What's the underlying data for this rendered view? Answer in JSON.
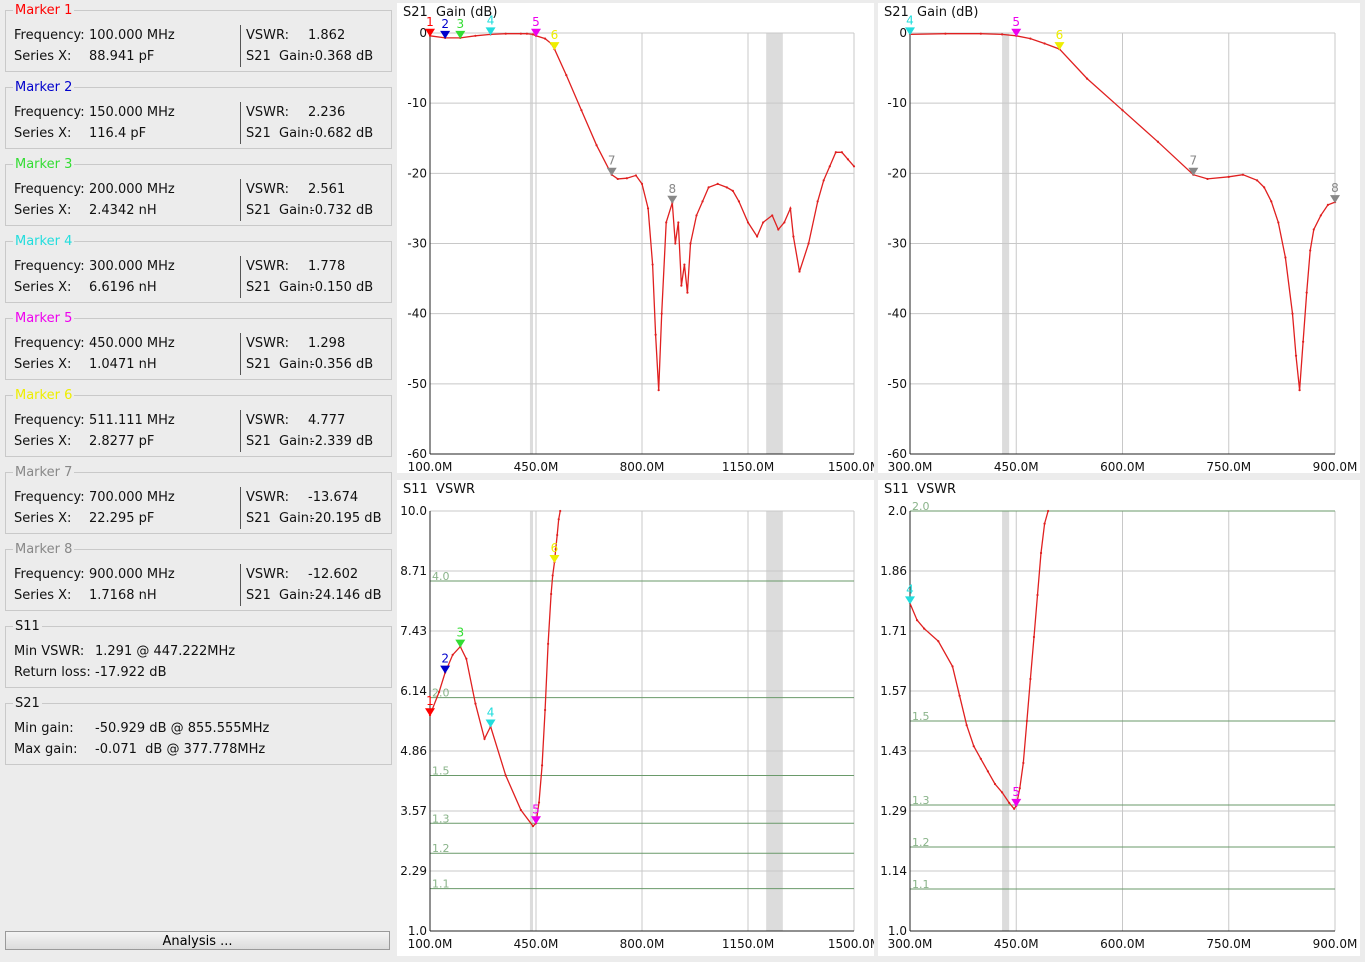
{
  "markers": [
    {
      "label": "Marker 1",
      "color": "#ff0000",
      "freq": "100.000 MHz",
      "series_label": "Series X:",
      "series_value": "88.941 pF",
      "vswr": "1.862",
      "gain": "-0.368 dB"
    },
    {
      "label": "Marker 2",
      "color": "#0000cc",
      "freq": "150.000 MHz",
      "series_label": "Series X:",
      "series_value": "116.4 pF",
      "vswr": "2.236",
      "gain": "-0.682 dB"
    },
    {
      "label": "Marker 3",
      "color": "#33dd33",
      "freq": "200.000 MHz",
      "series_label": "Series X:",
      "series_value": "2.4342 nH",
      "vswr": "2.561",
      "gain": "-0.732 dB"
    },
    {
      "label": "Marker 4",
      "color": "#22dddd",
      "freq": "300.000 MHz",
      "series_label": "Series X:",
      "series_value": "6.6196 nH",
      "vswr": "1.778",
      "gain": "-0.150 dB"
    },
    {
      "label": "Marker 5",
      "color": "#ee00ee",
      "freq": "450.000 MHz",
      "series_label": "Series X:",
      "series_value": "1.0471 nH",
      "vswr": "1.298",
      "gain": "-0.356 dB"
    },
    {
      "label": "Marker 6",
      "color": "#eeee00",
      "freq": "511.111 MHz",
      "series_label": "Series X:",
      "series_value": "2.8277 pF",
      "vswr": "4.777",
      "gain": "-2.339 dB"
    },
    {
      "label": "Marker 7",
      "color": "#888888",
      "freq": "700.000 MHz",
      "series_label": "Series X:",
      "series_value": "22.295 pF",
      "vswr": "-13.674",
      "gain": "-20.195 dB"
    },
    {
      "label": "Marker 8",
      "color": "#888888",
      "freq": "900.000 MHz",
      "series_label": "Series X:",
      "series_value": "1.7168 nH",
      "vswr": "-12.602",
      "gain": "-24.146 dB"
    }
  ],
  "field_labels": {
    "frequency": "Frequency:",
    "vswr": "VSWR:",
    "gain": "S21  Gain:"
  },
  "s11_summary": {
    "title": "S11",
    "line1_label": "Min VSWR:",
    "line1_value": "1.291 @ 447.222MHz",
    "line2_label": "Return loss:",
    "line2_value": "-17.922 dB"
  },
  "s21_summary": {
    "title": "S21",
    "line1_label": "Min gain:",
    "line1_value": "-50.929 dB @ 855.555MHz",
    "line2_label": "Max gain:",
    "line2_value": "-0.071  dB @ 377.778MHz"
  },
  "analysis_button": "Analysis ...",
  "charts": [
    {
      "id": "s21-wide",
      "title": "S21  Gain (dB)",
      "type": "line",
      "x_ticks": [
        "100.0M",
        "450.0M",
        "800.0M",
        "1150.0M",
        "1500.0M"
      ],
      "xlim": [
        100,
        1500
      ],
      "y_ticks": [
        "0",
        "-10",
        "-20",
        "-30",
        "-40",
        "-50",
        "-60"
      ],
      "ylim": [
        -60,
        0
      ],
      "y_scale": "linear",
      "bands": [
        [
          430,
          440
        ],
        [
          1210,
          1265
        ]
      ],
      "series": [
        {
          "color": "#e02020",
          "x": [
            100,
            150,
            200,
            250,
            300,
            350,
            400,
            420,
            440,
            450,
            480,
            500,
            511,
            550,
            600,
            650,
            700,
            720,
            750,
            780,
            800,
            820,
            835,
            845,
            855,
            865,
            880,
            900,
            910,
            920,
            930,
            940,
            950,
            960,
            980,
            1000,
            1020,
            1050,
            1080,
            1100,
            1120,
            1150,
            1180,
            1200,
            1230,
            1250,
            1270,
            1290,
            1300,
            1320,
            1350,
            1380,
            1400,
            1420,
            1440,
            1460,
            1480,
            1500
          ],
          "y": [
            -0.4,
            -0.7,
            -0.7,
            -0.4,
            -0.2,
            -0.1,
            -0.1,
            -0.1,
            -0.2,
            -0.4,
            -0.8,
            -1.5,
            -2.3,
            -6,
            -11,
            -16,
            -20.2,
            -20.8,
            -20.7,
            -20.3,
            -21.5,
            -25,
            -33,
            -43,
            -50.9,
            -40,
            -27,
            -24.2,
            -30,
            -27,
            -36,
            -33,
            -37,
            -30,
            -26,
            -24,
            -22,
            -21.5,
            -22,
            -22.5,
            -24,
            -27,
            -29,
            -27,
            -26,
            -28,
            -27,
            -25,
            -29,
            -34,
            -30,
            -24,
            -21,
            -19,
            -17,
            -17,
            -18,
            -19
          ]
        }
      ],
      "markers": [
        {
          "n": "1",
          "x": 100,
          "y": -0.4,
          "color": "#ff0000"
        },
        {
          "n": "2",
          "x": 150,
          "y": -0.7,
          "color": "#0000cc"
        },
        {
          "n": "3",
          "x": 200,
          "y": -0.7,
          "color": "#33dd33"
        },
        {
          "n": "4",
          "x": 300,
          "y": -0.2,
          "color": "#22dddd"
        },
        {
          "n": "5",
          "x": 450,
          "y": -0.4,
          "color": "#ee00ee"
        },
        {
          "n": "6",
          "x": 511,
          "y": -2.3,
          "color": "#eeee00"
        },
        {
          "n": "7",
          "x": 700,
          "y": -20.2,
          "color": "#888888"
        },
        {
          "n": "8",
          "x": 900,
          "y": -24.2,
          "color": "#888888"
        }
      ],
      "hlines": []
    },
    {
      "id": "s21-zoom",
      "title": "S21  Gain (dB)",
      "type": "line",
      "x_ticks": [
        "300.0M",
        "450.0M",
        "600.0M",
        "750.0M",
        "900.0M"
      ],
      "xlim": [
        300,
        900
      ],
      "y_ticks": [
        "0",
        "-10",
        "-20",
        "-30",
        "-40",
        "-50",
        "-60"
      ],
      "ylim": [
        -60,
        0
      ],
      "y_scale": "linear",
      "bands": [
        [
          430,
          440
        ]
      ],
      "series": [
        {
          "color": "#e02020",
          "x": [
            300,
            350,
            400,
            430,
            450,
            470,
            490,
            511,
            550,
            600,
            650,
            700,
            720,
            750,
            770,
            790,
            800,
            810,
            820,
            830,
            840,
            845,
            850,
            855,
            860,
            865,
            870,
            880,
            890,
            900
          ],
          "y": [
            -0.2,
            -0.1,
            -0.1,
            -0.2,
            -0.4,
            -0.8,
            -1.5,
            -2.3,
            -6.5,
            -11,
            -15.5,
            -20.2,
            -20.8,
            -20.5,
            -20.2,
            -21,
            -22,
            -24,
            -27,
            -32,
            -40,
            -46,
            -50.9,
            -44,
            -37,
            -31,
            -28,
            -26,
            -24.5,
            -24.1
          ]
        }
      ],
      "markers": [
        {
          "n": "4",
          "x": 300,
          "y": -0.2,
          "color": "#22dddd"
        },
        {
          "n": "5",
          "x": 450,
          "y": -0.4,
          "color": "#ee00ee"
        },
        {
          "n": "6",
          "x": 511,
          "y": -2.3,
          "color": "#eeee00"
        },
        {
          "n": "7",
          "x": 700,
          "y": -20.2,
          "color": "#888888"
        },
        {
          "n": "8",
          "x": 900,
          "y": -24.1,
          "color": "#888888"
        }
      ],
      "hlines": []
    },
    {
      "id": "s11-wide",
      "title": "S11  VSWR",
      "type": "line",
      "x_ticks": [
        "100.0M",
        "450.0M",
        "800.0M",
        "1150.0M",
        "1500.0M"
      ],
      "xlim": [
        100,
        1500
      ],
      "y_ticks": [
        "10.0",
        "8.71",
        "7.43",
        "6.14",
        "4.86",
        "3.57",
        "2.29",
        "1.0"
      ],
      "ylim": [
        1,
        10
      ],
      "y_scale": "reciprocal",
      "bands": [
        [
          430,
          440
        ],
        [
          1210,
          1265
        ]
      ],
      "series": [
        {
          "color": "#e02020",
          "x": [
            100,
            130,
            150,
            175,
            200,
            220,
            250,
            280,
            300,
            350,
            400,
            440,
            450,
            460,
            470,
            480,
            490,
            500,
            505,
            511,
            515,
            520,
            525,
            530
          ],
          "y": [
            1.86,
            2.05,
            2.24,
            2.45,
            2.56,
            2.4,
            1.95,
            1.7,
            1.78,
            1.5,
            1.35,
            1.29,
            1.3,
            1.38,
            1.55,
            1.9,
            2.6,
            3.6,
            4.2,
            4.78,
            5.5,
            6.6,
            8.5,
            10
          ]
        }
      ],
      "markers": [
        {
          "n": "1",
          "x": 100,
          "y": 1.86,
          "color": "#ff0000"
        },
        {
          "n": "2",
          "x": 150,
          "y": 2.24,
          "color": "#0000cc"
        },
        {
          "n": "3",
          "x": 200,
          "y": 2.56,
          "color": "#33dd33"
        },
        {
          "n": "4",
          "x": 300,
          "y": 1.78,
          "color": "#22dddd"
        },
        {
          "n": "5",
          "x": 450,
          "y": 1.3,
          "color": "#ee00ee"
        },
        {
          "n": "6",
          "x": 511,
          "y": 4.78,
          "color": "#eeee00"
        }
      ],
      "hlines": [
        {
          "v": 4.0,
          "label": "4.0"
        },
        {
          "v": 2.0,
          "label": "2.0"
        },
        {
          "v": 1.5,
          "label": "1.5"
        },
        {
          "v": 1.3,
          "label": "1.3"
        },
        {
          "v": 1.2,
          "label": "1.2"
        },
        {
          "v": 1.1,
          "label": "1.1"
        }
      ]
    },
    {
      "id": "s11-zoom",
      "title": "S11  VSWR",
      "type": "line",
      "x_ticks": [
        "300.0M",
        "450.0M",
        "600.0M",
        "750.0M",
        "900.0M"
      ],
      "xlim": [
        300,
        900
      ],
      "y_ticks": [
        "2.0",
        "1.86",
        "1.71",
        "1.57",
        "1.43",
        "1.29",
        "1.14",
        "1.0"
      ],
      "ylim": [
        1,
        2
      ],
      "y_scale": "linear",
      "bands": [
        [
          430,
          440
        ]
      ],
      "series": [
        {
          "color": "#e02020",
          "x": [
            300,
            310,
            320,
            340,
            360,
            370,
            380,
            390,
            400,
            410,
            420,
            430,
            440,
            447,
            450,
            455,
            460,
            465,
            470,
            475,
            480,
            485,
            490,
            495
          ],
          "y": [
            1.78,
            1.74,
            1.72,
            1.69,
            1.63,
            1.56,
            1.49,
            1.44,
            1.41,
            1.38,
            1.35,
            1.33,
            1.305,
            1.291,
            1.298,
            1.34,
            1.4,
            1.5,
            1.6,
            1.7,
            1.8,
            1.9,
            1.97,
            2.0
          ]
        }
      ],
      "markers": [
        {
          "n": "4",
          "x": 300,
          "y": 1.78,
          "color": "#22dddd"
        },
        {
          "n": "5",
          "x": 450,
          "y": 1.298,
          "color": "#ee00ee"
        }
      ],
      "hlines": [
        {
          "v": 2.0,
          "label": "2.0"
        },
        {
          "v": 1.5,
          "label": "1.5"
        },
        {
          "v": 1.3,
          "label": "1.3"
        },
        {
          "v": 1.2,
          "label": "1.2"
        },
        {
          "v": 1.1,
          "label": "1.1"
        }
      ]
    }
  ]
}
